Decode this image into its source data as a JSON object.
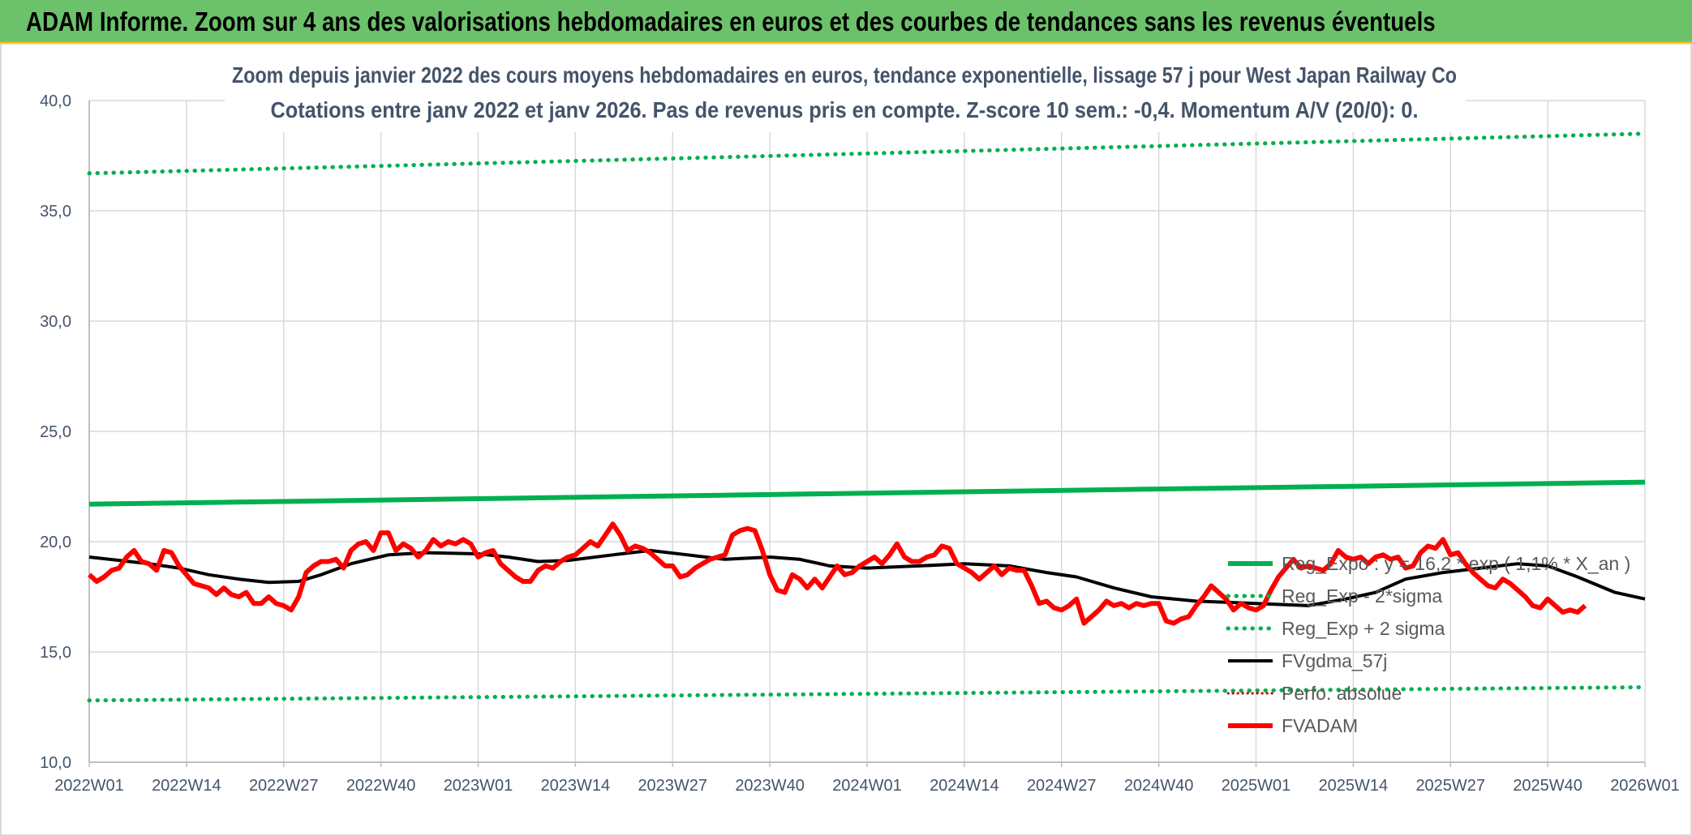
{
  "banner": {
    "title": "ADAM Informe. Zoom sur 4 ans des valorisations hebdomadaires en euros et des courbes de tendances sans les revenus éventuels"
  },
  "chart_data": {
    "type": "line",
    "title_line1": "Zoom depuis janvier 2022 des cours moyens hebdomadaires en euros, tendance exponentielle, lissage 57 j pour West Japan Railway Co",
    "title_line2": "Cotations entre janv 2022 et janv 2026. Pas de revenus pris en compte. Z-score 10 sem.: -0,4. Momentum A/V (20/0): 0.",
    "ylim": [
      10,
      40
    ],
    "y_ticks": [
      "10,0",
      "15,0",
      "20,0",
      "25,0",
      "30,0",
      "35,0",
      "40,0"
    ],
    "x_ticks": [
      "2022W01",
      "2022W14",
      "2022W27",
      "2022W40",
      "2023W01",
      "2023W14",
      "2023W27",
      "2023W40",
      "2024W01",
      "2024W14",
      "2024W27",
      "2024W40",
      "2025W01",
      "2025W14",
      "2025W27",
      "2025W40",
      "2026W01"
    ],
    "weeks_per_tick": 13,
    "grid": true,
    "legend_position": "right",
    "series": [
      {
        "name": "Reg_Expo : y = 16,2 * exp ( 1,1% * X_an )",
        "color": "#00b050",
        "style": "solid",
        "width": 6,
        "values": [
          [
            0,
            21.7
          ],
          [
            208,
            22.7
          ]
        ]
      },
      {
        "name": "Reg_Exp - 2*sigma",
        "color": "#00b050",
        "style": "dotted",
        "width": 5,
        "values": [
          [
            0,
            12.8
          ],
          [
            208,
            13.4
          ]
        ]
      },
      {
        "name": "Reg_Exp + 2 sigma",
        "color": "#00b050",
        "style": "dotted",
        "width": 5,
        "values": [
          [
            0,
            36.7
          ],
          [
            208,
            38.5
          ]
        ]
      },
      {
        "name": "FVgdma_57j",
        "color": "#000000",
        "style": "solid",
        "width": 4,
        "values": [
          [
            0,
            19.3
          ],
          [
            8,
            19.0
          ],
          [
            12,
            18.8
          ],
          [
            16,
            18.5
          ],
          [
            20,
            18.3
          ],
          [
            24,
            18.15
          ],
          [
            28,
            18.2
          ],
          [
            31,
            18.5
          ],
          [
            35,
            19.0
          ],
          [
            40,
            19.4
          ],
          [
            45,
            19.5
          ],
          [
            52,
            19.45
          ],
          [
            56,
            19.3
          ],
          [
            60,
            19.1
          ],
          [
            64,
            19.15
          ],
          [
            70,
            19.4
          ],
          [
            75,
            19.6
          ],
          [
            80,
            19.4
          ],
          [
            85,
            19.2
          ],
          [
            91,
            19.3
          ],
          [
            95,
            19.2
          ],
          [
            99,
            18.9
          ],
          [
            104,
            18.8
          ],
          [
            111,
            18.9
          ],
          [
            117,
            19.0
          ],
          [
            123,
            18.9
          ],
          [
            128,
            18.6
          ],
          [
            132,
            18.4
          ],
          [
            137,
            17.9
          ],
          [
            142,
            17.5
          ],
          [
            148,
            17.3
          ],
          [
            156,
            17.2
          ],
          [
            163,
            17.1
          ],
          [
            168,
            17.4
          ],
          [
            172,
            17.7
          ],
          [
            176,
            18.3
          ],
          [
            181,
            18.6
          ],
          [
            186,
            18.8
          ],
          [
            191,
            19.0
          ],
          [
            195,
            18.9
          ],
          [
            199,
            18.4
          ],
          [
            204,
            17.7
          ],
          [
            208,
            17.4
          ]
        ]
      },
      {
        "name": "Perfo. absolue",
        "color": "#c00000",
        "style": "dotted",
        "width": 3,
        "values": []
      },
      {
        "name": "FVADAM",
        "color": "#ff0000",
        "style": "solid",
        "width": 6,
        "values": [
          [
            0,
            18.5
          ],
          [
            1,
            18.2
          ],
          [
            2,
            18.4
          ],
          [
            3,
            18.7
          ],
          [
            4,
            18.8
          ],
          [
            5,
            19.3
          ],
          [
            6,
            19.6
          ],
          [
            7,
            19.1
          ],
          [
            8,
            19.0
          ],
          [
            9,
            18.7
          ],
          [
            10,
            19.6
          ],
          [
            11,
            19.5
          ],
          [
            12,
            18.9
          ],
          [
            13,
            18.5
          ],
          [
            14,
            18.1
          ],
          [
            15,
            18.0
          ],
          [
            16,
            17.9
          ],
          [
            17,
            17.6
          ],
          [
            18,
            17.9
          ],
          [
            19,
            17.6
          ],
          [
            20,
            17.5
          ],
          [
            21,
            17.7
          ],
          [
            22,
            17.2
          ],
          [
            23,
            17.2
          ],
          [
            24,
            17.5
          ],
          [
            25,
            17.2
          ],
          [
            26,
            17.1
          ],
          [
            27,
            16.9
          ],
          [
            28,
            17.5
          ],
          [
            29,
            18.6
          ],
          [
            30,
            18.9
          ],
          [
            31,
            19.1
          ],
          [
            32,
            19.1
          ],
          [
            33,
            19.2
          ],
          [
            34,
            18.8
          ],
          [
            35,
            19.6
          ],
          [
            36,
            19.9
          ],
          [
            37,
            20.0
          ],
          [
            38,
            19.6
          ],
          [
            39,
            20.4
          ],
          [
            40,
            20.4
          ],
          [
            41,
            19.6
          ],
          [
            42,
            19.9
          ],
          [
            43,
            19.7
          ],
          [
            44,
            19.3
          ],
          [
            45,
            19.6
          ],
          [
            46,
            20.1
          ],
          [
            47,
            19.8
          ],
          [
            48,
            20.0
          ],
          [
            49,
            19.9
          ],
          [
            50,
            20.1
          ],
          [
            51,
            19.9
          ],
          [
            52,
            19.3
          ],
          [
            53,
            19.5
          ],
          [
            54,
            19.6
          ],
          [
            55,
            19.0
          ],
          [
            56,
            18.7
          ],
          [
            57,
            18.4
          ],
          [
            58,
            18.2
          ],
          [
            59,
            18.2
          ],
          [
            60,
            18.7
          ],
          [
            61,
            18.9
          ],
          [
            62,
            18.8
          ],
          [
            63,
            19.1
          ],
          [
            64,
            19.3
          ],
          [
            65,
            19.4
          ],
          [
            66,
            19.7
          ],
          [
            67,
            20.0
          ],
          [
            68,
            19.8
          ],
          [
            69,
            20.3
          ],
          [
            70,
            20.8
          ],
          [
            71,
            20.3
          ],
          [
            72,
            19.6
          ],
          [
            73,
            19.8
          ],
          [
            74,
            19.7
          ],
          [
            75,
            19.5
          ],
          [
            76,
            19.2
          ],
          [
            77,
            18.9
          ],
          [
            78,
            18.9
          ],
          [
            79,
            18.4
          ],
          [
            80,
            18.5
          ],
          [
            81,
            18.8
          ],
          [
            82,
            19.0
          ],
          [
            83,
            19.2
          ],
          [
            84,
            19.3
          ],
          [
            85,
            19.4
          ],
          [
            86,
            20.3
          ],
          [
            87,
            20.5
          ],
          [
            88,
            20.6
          ],
          [
            89,
            20.5
          ],
          [
            90,
            19.6
          ],
          [
            91,
            18.5
          ],
          [
            92,
            17.8
          ],
          [
            93,
            17.7
          ],
          [
            94,
            18.5
          ],
          [
            95,
            18.3
          ],
          [
            96,
            17.9
          ],
          [
            97,
            18.3
          ],
          [
            98,
            17.9
          ],
          [
            99,
            18.4
          ],
          [
            100,
            18.9
          ],
          [
            101,
            18.5
          ],
          [
            102,
            18.6
          ],
          [
            103,
            18.9
          ],
          [
            104,
            19.1
          ],
          [
            105,
            19.3
          ],
          [
            106,
            19.0
          ],
          [
            107,
            19.4
          ],
          [
            108,
            19.9
          ],
          [
            109,
            19.3
          ],
          [
            110,
            19.1
          ],
          [
            111,
            19.1
          ],
          [
            112,
            19.3
          ],
          [
            113,
            19.4
          ],
          [
            114,
            19.8
          ],
          [
            115,
            19.7
          ],
          [
            116,
            19.0
          ],
          [
            117,
            18.8
          ],
          [
            118,
            18.6
          ],
          [
            119,
            18.3
          ],
          [
            120,
            18.6
          ],
          [
            121,
            18.9
          ],
          [
            122,
            18.5
          ],
          [
            123,
            18.8
          ],
          [
            124,
            18.7
          ],
          [
            125,
            18.7
          ],
          [
            126,
            18.0
          ],
          [
            127,
            17.2
          ],
          [
            128,
            17.3
          ],
          [
            129,
            17.0
          ],
          [
            130,
            16.9
          ],
          [
            131,
            17.1
          ],
          [
            132,
            17.4
          ],
          [
            133,
            16.3
          ],
          [
            134,
            16.6
          ],
          [
            135,
            16.9
          ],
          [
            136,
            17.3
          ],
          [
            137,
            17.1
          ],
          [
            138,
            17.2
          ],
          [
            139,
            17.0
          ],
          [
            140,
            17.2
          ],
          [
            141,
            17.1
          ],
          [
            142,
            17.2
          ],
          [
            143,
            17.2
          ],
          [
            144,
            16.4
          ],
          [
            145,
            16.3
          ],
          [
            146,
            16.5
          ],
          [
            147,
            16.6
          ],
          [
            148,
            17.1
          ],
          [
            149,
            17.5
          ],
          [
            150,
            18.0
          ],
          [
            151,
            17.7
          ],
          [
            152,
            17.4
          ],
          [
            153,
            16.9
          ],
          [
            154,
            17.2
          ],
          [
            155,
            17.0
          ],
          [
            156,
            16.9
          ],
          [
            157,
            17.1
          ],
          [
            158,
            17.8
          ],
          [
            159,
            18.4
          ],
          [
            160,
            18.8
          ],
          [
            161,
            19.2
          ],
          [
            162,
            18.8
          ],
          [
            163,
            18.9
          ],
          [
            164,
            18.8
          ],
          [
            165,
            18.7
          ],
          [
            166,
            19.0
          ],
          [
            167,
            19.6
          ],
          [
            168,
            19.3
          ],
          [
            169,
            19.2
          ],
          [
            170,
            19.3
          ],
          [
            171,
            19.0
          ],
          [
            172,
            19.3
          ],
          [
            173,
            19.4
          ],
          [
            174,
            19.2
          ],
          [
            175,
            19.3
          ],
          [
            176,
            18.8
          ],
          [
            177,
            18.9
          ],
          [
            178,
            19.5
          ],
          [
            179,
            19.8
          ],
          [
            180,
            19.7
          ],
          [
            181,
            20.1
          ],
          [
            182,
            19.4
          ],
          [
            183,
            19.5
          ],
          [
            184,
            19.0
          ],
          [
            185,
            18.6
          ],
          [
            186,
            18.3
          ],
          [
            187,
            18.0
          ],
          [
            188,
            17.9
          ],
          [
            189,
            18.3
          ],
          [
            190,
            18.1
          ],
          [
            191,
            17.8
          ],
          [
            192,
            17.5
          ],
          [
            193,
            17.1
          ],
          [
            194,
            17.0
          ],
          [
            195,
            17.4
          ],
          [
            196,
            17.1
          ],
          [
            197,
            16.8
          ],
          [
            198,
            16.9
          ],
          [
            199,
            16.8
          ],
          [
            200,
            17.1
          ]
        ]
      }
    ]
  }
}
